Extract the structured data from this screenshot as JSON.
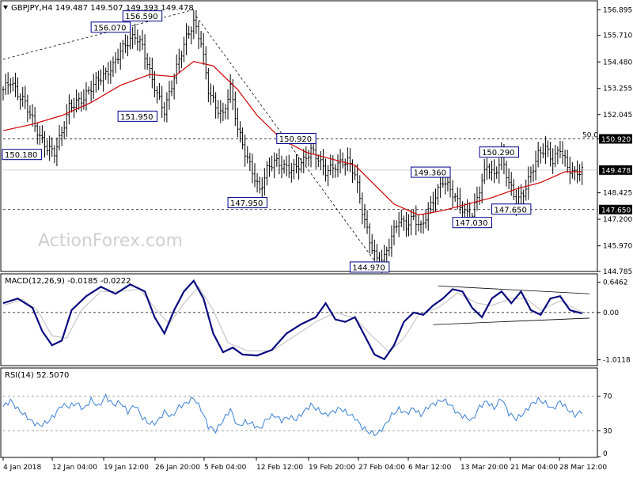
{
  "header": {
    "symbol_line": "GBPJPY,H4  149.487 149.507 149.393 149.478"
  },
  "watermark": "ActionForex.com",
  "colors": {
    "candle": "#000000",
    "ma": "#d00000",
    "macd": "#0a0a80",
    "signal": "#c8c8c8",
    "rsi": "#3a7fd5",
    "label_border": "#00008b",
    "price_tag_bg": "#000000"
  },
  "chart_data": [
    {
      "type": "line",
      "title": "GBPJPY,H4",
      "ohlc_last": {
        "open": 149.487,
        "high": 149.507,
        "low": 149.393,
        "close": 149.478
      },
      "ylim": [
        144.785,
        157.2
      ],
      "y_ticks": [
        156.895,
        155.71,
        154.48,
        153.255,
        152.045,
        150.92,
        148.425,
        147.2,
        145.97,
        144.785
      ],
      "y_tick_labels": [
        "156.895",
        "155.710",
        "154.480",
        "153.255",
        "152.045",
        "150.920",
        "148.425",
        "147.200",
        "145.970",
        "144.785"
      ],
      "price_tags": [
        {
          "value": 150.92,
          "label": "150.920"
        },
        {
          "value": 149.478,
          "label": "149.478"
        },
        {
          "value": 147.65,
          "label": "147.650"
        }
      ],
      "horizontal_levels": [
        {
          "value": 150.92,
          "label": "50.0"
        },
        {
          "value": 147.65,
          "label": ""
        }
      ],
      "x_labels": [
        "4 Jan 2018",
        "12 Jan 04:00",
        "19 Jan 12:00",
        "26 Jan 20:00",
        "5 Feb 04:00",
        "12 Feb 12:00",
        "19 Feb 20:00",
        "27 Feb 04:00",
        "6 Mar 12:00",
        "13 Mar 20:00",
        "21 Mar 04:00",
        "28 Mar 12:00"
      ],
      "close_series": [
        {
          "x": 0,
          "y": 153.2
        },
        {
          "x": 3,
          "y": 153.6
        },
        {
          "x": 6,
          "y": 153.0
        },
        {
          "x": 9,
          "y": 152.6
        },
        {
          "x": 12,
          "y": 151.8
        },
        {
          "x": 15,
          "y": 151.0
        },
        {
          "x": 18,
          "y": 150.5
        },
        {
          "x": 21,
          "y": 150.3
        },
        {
          "x": 24,
          "y": 151.2
        },
        {
          "x": 27,
          "y": 152.4
        },
        {
          "x": 30,
          "y": 152.6
        },
        {
          "x": 33,
          "y": 152.8
        },
        {
          "x": 36,
          "y": 153.3
        },
        {
          "x": 39,
          "y": 153.7
        },
        {
          "x": 42,
          "y": 153.9
        },
        {
          "x": 45,
          "y": 154.3
        },
        {
          "x": 48,
          "y": 155.0
        },
        {
          "x": 51,
          "y": 155.4
        },
        {
          "x": 54,
          "y": 155.7
        },
        {
          "x": 57,
          "y": 155.2
        },
        {
          "x": 60,
          "y": 154.0
        },
        {
          "x": 63,
          "y": 153.0
        },
        {
          "x": 66,
          "y": 152.2
        },
        {
          "x": 69,
          "y": 153.4
        },
        {
          "x": 72,
          "y": 154.6
        },
        {
          "x": 75,
          "y": 155.6
        },
        {
          "x": 78,
          "y": 156.3
        },
        {
          "x": 81,
          "y": 155.4
        },
        {
          "x": 84,
          "y": 153.2
        },
        {
          "x": 87,
          "y": 152.4
        },
        {
          "x": 90,
          "y": 152.0
        },
        {
          "x": 93,
          "y": 153.3
        },
        {
          "x": 96,
          "y": 151.4
        },
        {
          "x": 99,
          "y": 150.3
        },
        {
          "x": 102,
          "y": 149.4
        },
        {
          "x": 105,
          "y": 148.5
        },
        {
          "x": 108,
          "y": 149.5
        },
        {
          "x": 111,
          "y": 149.9
        },
        {
          "x": 114,
          "y": 149.7
        },
        {
          "x": 117,
          "y": 149.5
        },
        {
          "x": 120,
          "y": 149.6
        },
        {
          "x": 123,
          "y": 149.9
        },
        {
          "x": 126,
          "y": 150.4
        },
        {
          "x": 129,
          "y": 150.0
        },
        {
          "x": 132,
          "y": 149.4
        },
        {
          "x": 135,
          "y": 149.6
        },
        {
          "x": 138,
          "y": 149.8
        },
        {
          "x": 141,
          "y": 149.9
        },
        {
          "x": 144,
          "y": 149.3
        },
        {
          "x": 147,
          "y": 147.6
        },
        {
          "x": 150,
          "y": 146.2
        },
        {
          "x": 153,
          "y": 145.3
        },
        {
          "x": 156,
          "y": 145.4
        },
        {
          "x": 159,
          "y": 146.4
        },
        {
          "x": 162,
          "y": 147.2
        },
        {
          "x": 165,
          "y": 146.9
        },
        {
          "x": 168,
          "y": 147.3
        },
        {
          "x": 171,
          "y": 146.8
        },
        {
          "x": 174,
          "y": 147.6
        },
        {
          "x": 177,
          "y": 148.3
        },
        {
          "x": 180,
          "y": 149.0
        },
        {
          "x": 183,
          "y": 148.6
        },
        {
          "x": 186,
          "y": 148.0
        },
        {
          "x": 189,
          "y": 147.5
        },
        {
          "x": 192,
          "y": 147.4
        },
        {
          "x": 195,
          "y": 148.6
        },
        {
          "x": 198,
          "y": 149.7
        },
        {
          "x": 201,
          "y": 149.2
        },
        {
          "x": 204,
          "y": 150.1
        },
        {
          "x": 207,
          "y": 148.9
        },
        {
          "x": 210,
          "y": 148.0
        },
        {
          "x": 213,
          "y": 148.4
        },
        {
          "x": 216,
          "y": 149.3
        },
        {
          "x": 219,
          "y": 150.2
        },
        {
          "x": 222,
          "y": 150.5
        },
        {
          "x": 225,
          "y": 149.9
        },
        {
          "x": 228,
          "y": 150.5
        },
        {
          "x": 231,
          "y": 149.6
        },
        {
          "x": 234,
          "y": 149.3
        },
        {
          "x": 237,
          "y": 149.478
        }
      ],
      "ma_series": [
        {
          "x": 0,
          "y": 151.3
        },
        {
          "x": 12,
          "y": 151.6
        },
        {
          "x": 24,
          "y": 152.0
        },
        {
          "x": 36,
          "y": 152.6
        },
        {
          "x": 48,
          "y": 153.4
        },
        {
          "x": 60,
          "y": 153.9
        },
        {
          "x": 70,
          "y": 153.8
        },
        {
          "x": 78,
          "y": 154.5
        },
        {
          "x": 86,
          "y": 154.3
        },
        {
          "x": 96,
          "y": 153.2
        },
        {
          "x": 104,
          "y": 152.0
        },
        {
          "x": 114,
          "y": 150.9
        },
        {
          "x": 124,
          "y": 150.3
        },
        {
          "x": 134,
          "y": 150.0
        },
        {
          "x": 144,
          "y": 149.7
        },
        {
          "x": 152,
          "y": 148.8
        },
        {
          "x": 160,
          "y": 147.9
        },
        {
          "x": 170,
          "y": 147.4
        },
        {
          "x": 180,
          "y": 147.6
        },
        {
          "x": 190,
          "y": 147.9
        },
        {
          "x": 200,
          "y": 148.2
        },
        {
          "x": 210,
          "y": 148.6
        },
        {
          "x": 220,
          "y": 148.9
        },
        {
          "x": 230,
          "y": 149.4
        },
        {
          "x": 237,
          "y": 149.4
        }
      ],
      "annotations": [
        {
          "x": 57,
          "y": 156.59,
          "label": "156.590"
        },
        {
          "x": 44,
          "y": 156.07,
          "label": "156.070"
        },
        {
          "x": 55,
          "y": 151.95,
          "label": "151.950"
        },
        {
          "x": 0,
          "y": 150.18,
          "label": "150.180"
        },
        {
          "x": 120,
          "y": 150.92,
          "label": "150.920"
        },
        {
          "x": 100,
          "y": 147.95,
          "label": "147.950"
        },
        {
          "x": 150,
          "y": 144.97,
          "label": "144.970"
        },
        {
          "x": 175,
          "y": 149.36,
          "label": "149.360"
        },
        {
          "x": 203,
          "y": 150.29,
          "label": "150.290"
        },
        {
          "x": 192,
          "y": 147.03,
          "label": "147.030"
        },
        {
          "x": 208,
          "y": 147.65,
          "label": "147.650"
        }
      ]
    },
    {
      "type": "line",
      "title": "MACD(12,26,9) -0.0185 -0.0222",
      "ylim": [
        -1.12,
        0.76
      ],
      "y_ticks": [
        0.6462,
        0.0,
        -1.0118
      ],
      "y_tick_labels": [
        "0.6462",
        "0.00",
        "-1.0118"
      ],
      "macd_series": [
        {
          "x": 0,
          "y": 0.2
        },
        {
          "x": 6,
          "y": 0.3
        },
        {
          "x": 12,
          "y": 0.1
        },
        {
          "x": 16,
          "y": -0.4
        },
        {
          "x": 20,
          "y": -0.7
        },
        {
          "x": 24,
          "y": -0.6
        },
        {
          "x": 28,
          "y": 0.05
        },
        {
          "x": 34,
          "y": 0.35
        },
        {
          "x": 40,
          "y": 0.55
        },
        {
          "x": 46,
          "y": 0.4
        },
        {
          "x": 52,
          "y": 0.6
        },
        {
          "x": 58,
          "y": 0.45
        },
        {
          "x": 62,
          "y": -0.1
        },
        {
          "x": 66,
          "y": -0.45
        },
        {
          "x": 70,
          "y": 0.05
        },
        {
          "x": 74,
          "y": 0.45
        },
        {
          "x": 78,
          "y": 0.68
        },
        {
          "x": 82,
          "y": 0.3
        },
        {
          "x": 86,
          "y": -0.45
        },
        {
          "x": 90,
          "y": -0.85
        },
        {
          "x": 94,
          "y": -0.75
        },
        {
          "x": 98,
          "y": -0.9
        },
        {
          "x": 104,
          "y": -0.92
        },
        {
          "x": 110,
          "y": -0.8
        },
        {
          "x": 116,
          "y": -0.45
        },
        {
          "x": 122,
          "y": -0.25
        },
        {
          "x": 128,
          "y": -0.1
        },
        {
          "x": 132,
          "y": 0.2
        },
        {
          "x": 136,
          "y": -0.15
        },
        {
          "x": 140,
          "y": -0.2
        },
        {
          "x": 144,
          "y": -0.1
        },
        {
          "x": 148,
          "y": -0.5
        },
        {
          "x": 152,
          "y": -0.9
        },
        {
          "x": 156,
          "y": -1.0
        },
        {
          "x": 160,
          "y": -0.7
        },
        {
          "x": 164,
          "y": -0.2
        },
        {
          "x": 168,
          "y": 0.0
        },
        {
          "x": 172,
          "y": -0.05
        },
        {
          "x": 176,
          "y": 0.15
        },
        {
          "x": 180,
          "y": 0.3
        },
        {
          "x": 184,
          "y": 0.5
        },
        {
          "x": 188,
          "y": 0.45
        },
        {
          "x": 192,
          "y": 0.1
        },
        {
          "x": 196,
          "y": -0.1
        },
        {
          "x": 200,
          "y": 0.3
        },
        {
          "x": 204,
          "y": 0.45
        },
        {
          "x": 208,
          "y": 0.2
        },
        {
          "x": 212,
          "y": 0.45
        },
        {
          "x": 216,
          "y": 0.05
        },
        {
          "x": 220,
          "y": -0.05
        },
        {
          "x": 224,
          "y": 0.3
        },
        {
          "x": 228,
          "y": 0.35
        },
        {
          "x": 232,
          "y": 0.05
        },
        {
          "x": 237,
          "y": -0.02
        }
      ],
      "signal_series": [
        {
          "x": 0,
          "y": 0.15
        },
        {
          "x": 8,
          "y": 0.28
        },
        {
          "x": 14,
          "y": 0.05
        },
        {
          "x": 20,
          "y": -0.5
        },
        {
          "x": 26,
          "y": -0.55
        },
        {
          "x": 32,
          "y": 0.05
        },
        {
          "x": 40,
          "y": 0.45
        },
        {
          "x": 48,
          "y": 0.45
        },
        {
          "x": 56,
          "y": 0.5
        },
        {
          "x": 62,
          "y": 0.1
        },
        {
          "x": 68,
          "y": -0.25
        },
        {
          "x": 74,
          "y": 0.2
        },
        {
          "x": 80,
          "y": 0.55
        },
        {
          "x": 86,
          "y": 0.05
        },
        {
          "x": 92,
          "y": -0.65
        },
        {
          "x": 100,
          "y": -0.82
        },
        {
          "x": 110,
          "y": -0.82
        },
        {
          "x": 118,
          "y": -0.55
        },
        {
          "x": 128,
          "y": -0.2
        },
        {
          "x": 136,
          "y": 0.0
        },
        {
          "x": 144,
          "y": -0.12
        },
        {
          "x": 150,
          "y": -0.45
        },
        {
          "x": 158,
          "y": -0.85
        },
        {
          "x": 164,
          "y": -0.55
        },
        {
          "x": 170,
          "y": -0.05
        },
        {
          "x": 178,
          "y": 0.1
        },
        {
          "x": 186,
          "y": 0.42
        },
        {
          "x": 194,
          "y": 0.2
        },
        {
          "x": 200,
          "y": 0.15
        },
        {
          "x": 208,
          "y": 0.3
        },
        {
          "x": 214,
          "y": 0.3
        },
        {
          "x": 220,
          "y": 0.05
        },
        {
          "x": 228,
          "y": 0.25
        },
        {
          "x": 237,
          "y": 0.0
        }
      ]
    },
    {
      "type": "line",
      "title": "RSI(14) 52.5070",
      "ylim": [
        0,
        100
      ],
      "y_ticks": [
        70,
        30,
        0
      ],
      "y_tick_labels": [
        "70",
        "30",
        "0"
      ],
      "rsi_series": [
        {
          "x": 0,
          "y": 58
        },
        {
          "x": 3,
          "y": 65
        },
        {
          "x": 6,
          "y": 55
        },
        {
          "x": 9,
          "y": 48
        },
        {
          "x": 12,
          "y": 40
        },
        {
          "x": 15,
          "y": 36
        },
        {
          "x": 18,
          "y": 40
        },
        {
          "x": 21,
          "y": 48
        },
        {
          "x": 24,
          "y": 60
        },
        {
          "x": 27,
          "y": 58
        },
        {
          "x": 30,
          "y": 62
        },
        {
          "x": 33,
          "y": 55
        },
        {
          "x": 36,
          "y": 66
        },
        {
          "x": 39,
          "y": 58
        },
        {
          "x": 42,
          "y": 70
        },
        {
          "x": 45,
          "y": 60
        },
        {
          "x": 48,
          "y": 63
        },
        {
          "x": 51,
          "y": 52
        },
        {
          "x": 54,
          "y": 60
        },
        {
          "x": 57,
          "y": 45
        },
        {
          "x": 60,
          "y": 38
        },
        {
          "x": 63,
          "y": 40
        },
        {
          "x": 66,
          "y": 52
        },
        {
          "x": 69,
          "y": 46
        },
        {
          "x": 72,
          "y": 58
        },
        {
          "x": 75,
          "y": 62
        },
        {
          "x": 78,
          "y": 68
        },
        {
          "x": 81,
          "y": 55
        },
        {
          "x": 84,
          "y": 35
        },
        {
          "x": 87,
          "y": 30
        },
        {
          "x": 90,
          "y": 42
        },
        {
          "x": 93,
          "y": 55
        },
        {
          "x": 96,
          "y": 35
        },
        {
          "x": 99,
          "y": 40
        },
        {
          "x": 102,
          "y": 38
        },
        {
          "x": 105,
          "y": 32
        },
        {
          "x": 108,
          "y": 44
        },
        {
          "x": 111,
          "y": 48
        },
        {
          "x": 114,
          "y": 42
        },
        {
          "x": 117,
          "y": 46
        },
        {
          "x": 120,
          "y": 43
        },
        {
          "x": 123,
          "y": 52
        },
        {
          "x": 126,
          "y": 60
        },
        {
          "x": 129,
          "y": 54
        },
        {
          "x": 132,
          "y": 48
        },
        {
          "x": 135,
          "y": 52
        },
        {
          "x": 138,
          "y": 56
        },
        {
          "x": 141,
          "y": 50
        },
        {
          "x": 144,
          "y": 45
        },
        {
          "x": 147,
          "y": 34
        },
        {
          "x": 150,
          "y": 28
        },
        {
          "x": 153,
          "y": 26
        },
        {
          "x": 156,
          "y": 35
        },
        {
          "x": 159,
          "y": 48
        },
        {
          "x": 162,
          "y": 55
        },
        {
          "x": 165,
          "y": 50
        },
        {
          "x": 168,
          "y": 56
        },
        {
          "x": 171,
          "y": 48
        },
        {
          "x": 174,
          "y": 58
        },
        {
          "x": 177,
          "y": 62
        },
        {
          "x": 180,
          "y": 66
        },
        {
          "x": 183,
          "y": 60
        },
        {
          "x": 186,
          "y": 50
        },
        {
          "x": 189,
          "y": 46
        },
        {
          "x": 192,
          "y": 42
        },
        {
          "x": 195,
          "y": 58
        },
        {
          "x": 198,
          "y": 64
        },
        {
          "x": 201,
          "y": 56
        },
        {
          "x": 204,
          "y": 68
        },
        {
          "x": 207,
          "y": 50
        },
        {
          "x": 210,
          "y": 44
        },
        {
          "x": 213,
          "y": 50
        },
        {
          "x": 216,
          "y": 60
        },
        {
          "x": 219,
          "y": 66
        },
        {
          "x": 222,
          "y": 62
        },
        {
          "x": 225,
          "y": 55
        },
        {
          "x": 228,
          "y": 64
        },
        {
          "x": 231,
          "y": 55
        },
        {
          "x": 234,
          "y": 48
        },
        {
          "x": 237,
          "y": 52.5
        }
      ]
    }
  ]
}
